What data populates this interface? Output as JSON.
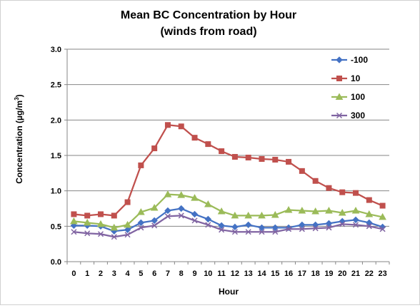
{
  "chart_data": {
    "type": "line",
    "title": "Mean BC Concentration by Hour",
    "subtitle": "(winds from road)",
    "xlabel": "Hour",
    "ylabel": "Concentration (µg/m³)",
    "ylabel_parts": {
      "main": "Concentration (µg/m",
      "sup": "3",
      "end": ")"
    },
    "ylim": [
      0,
      3
    ],
    "yticks": [
      0,
      0.5,
      1,
      1.5,
      2,
      2.5,
      3
    ],
    "ytick_labels": [
      "0.0",
      "0.5",
      "1.0",
      "1.5",
      "2.0",
      "2.5",
      "3.0"
    ],
    "x": [
      0,
      1,
      2,
      3,
      4,
      5,
      6,
      7,
      8,
      9,
      10,
      11,
      12,
      13,
      14,
      15,
      16,
      17,
      18,
      19,
      20,
      21,
      22,
      23
    ],
    "x_labels": [
      "0",
      "1",
      "2",
      "3",
      "4",
      "5",
      "6",
      "7",
      "8",
      "9",
      "10",
      "11",
      "12",
      "13",
      "14",
      "15",
      "16",
      "17",
      "18",
      "19",
      "20",
      "21",
      "22",
      "23"
    ],
    "grid": "horizontal",
    "legend_position": "top-right",
    "series": [
      {
        "name": "-100",
        "color": "#4472c4",
        "marker": "diamond",
        "values": [
          0.51,
          0.51,
          0.5,
          0.43,
          0.45,
          0.55,
          0.58,
          0.72,
          0.75,
          0.67,
          0.6,
          0.51,
          0.49,
          0.52,
          0.48,
          0.48,
          0.48,
          0.52,
          0.52,
          0.54,
          0.57,
          0.59,
          0.55,
          0.49
        ]
      },
      {
        "name": "10",
        "color": "#c0504d",
        "marker": "square",
        "values": [
          0.67,
          0.65,
          0.67,
          0.65,
          0.84,
          1.36,
          1.6,
          1.93,
          1.91,
          1.75,
          1.66,
          1.56,
          1.48,
          1.47,
          1.45,
          1.44,
          1.41,
          1.28,
          1.14,
          1.04,
          0.98,
          0.97,
          0.87,
          0.79
        ]
      },
      {
        "name": "100",
        "color": "#9bbb59",
        "marker": "triangle",
        "values": [
          0.57,
          0.55,
          0.53,
          0.48,
          0.52,
          0.7,
          0.76,
          0.95,
          0.94,
          0.9,
          0.81,
          0.71,
          0.65,
          0.65,
          0.65,
          0.66,
          0.73,
          0.72,
          0.71,
          0.72,
          0.69,
          0.72,
          0.67,
          0.63
        ]
      },
      {
        "name": "300",
        "color": "#8064a2",
        "marker": "x",
        "values": [
          0.42,
          0.4,
          0.39,
          0.35,
          0.38,
          0.48,
          0.51,
          0.64,
          0.65,
          0.58,
          0.52,
          0.45,
          0.42,
          0.42,
          0.42,
          0.42,
          0.46,
          0.46,
          0.47,
          0.48,
          0.53,
          0.52,
          0.5,
          0.46
        ]
      }
    ]
  }
}
